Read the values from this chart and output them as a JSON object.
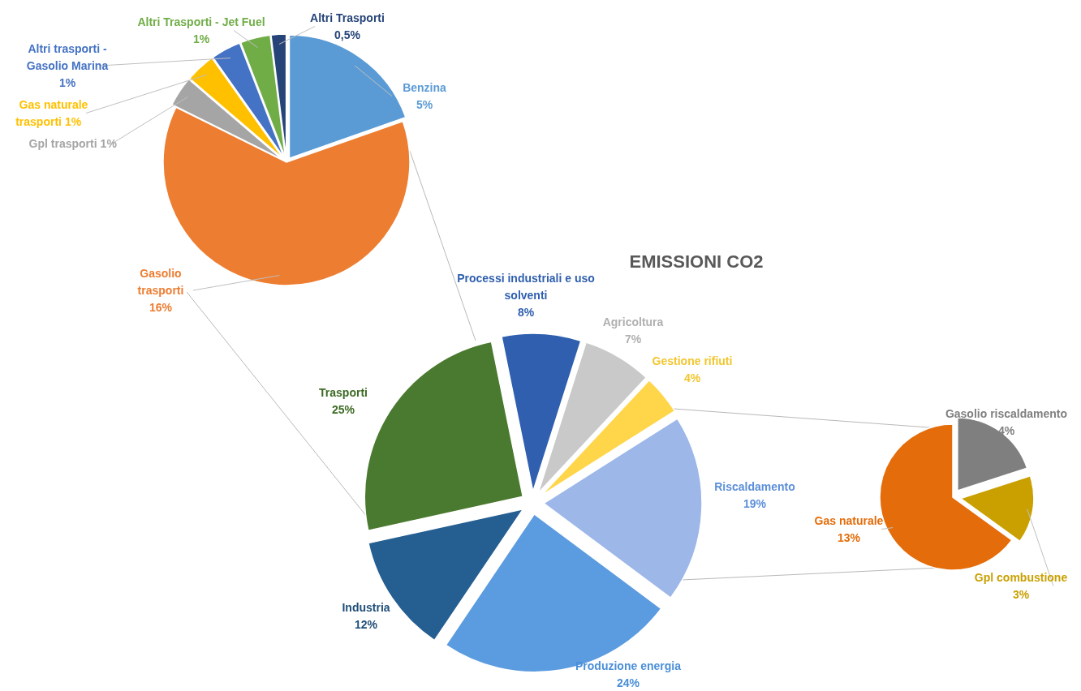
{
  "chart_data": [
    {
      "type": "pie",
      "title": "EMISSIONI CO2",
      "categories": [
        "Processi industriali e uso solventi",
        "Agricoltura",
        "Gestione rifiuti",
        "Riscaldamento",
        "Produzione energia",
        "Industria",
        "Trasporti"
      ],
      "values": [
        8,
        7,
        4,
        19,
        24,
        12,
        25
      ],
      "value_labels": [
        "8%",
        "7%",
        "4%",
        "19%",
        "24%",
        "12%",
        "25%"
      ],
      "colors": [
        "#2f5fae",
        "#c9c9c9",
        "#ffd54a",
        "#9db7e8",
        "#5b9be0",
        "#255e91",
        "#4a7a2f"
      ]
    },
    {
      "type": "pie",
      "categories": [
        "Benzina",
        "Gasolio trasporti",
        "Gpl trasporti",
        "Gas naturale trasporti",
        "Altri trasporti - Gasolio Marina",
        "Altri Trasporti - Jet Fuel",
        "Altri Trasporti"
      ],
      "values": [
        5,
        16,
        1,
        1,
        1,
        1,
        0.5
      ],
      "value_labels": [
        "5%",
        "16%",
        "1%",
        "1%",
        "1%",
        "1%",
        "0,5%"
      ],
      "colors": [
        "#5b9bd5",
        "#ed7d31",
        "#a5a5a5",
        "#ffc000",
        "#4472c4",
        "#70ad47",
        "#264478"
      ]
    },
    {
      "type": "pie",
      "categories": [
        "Gasolio riscaldamento",
        "Gpl combustione",
        "Gas naturale"
      ],
      "values": [
        4,
        3,
        13
      ],
      "value_labels": [
        "4%",
        "3%",
        "13%"
      ],
      "colors": [
        "#7f7f7f",
        "#c9a000",
        "#e46c0a"
      ]
    }
  ]
}
